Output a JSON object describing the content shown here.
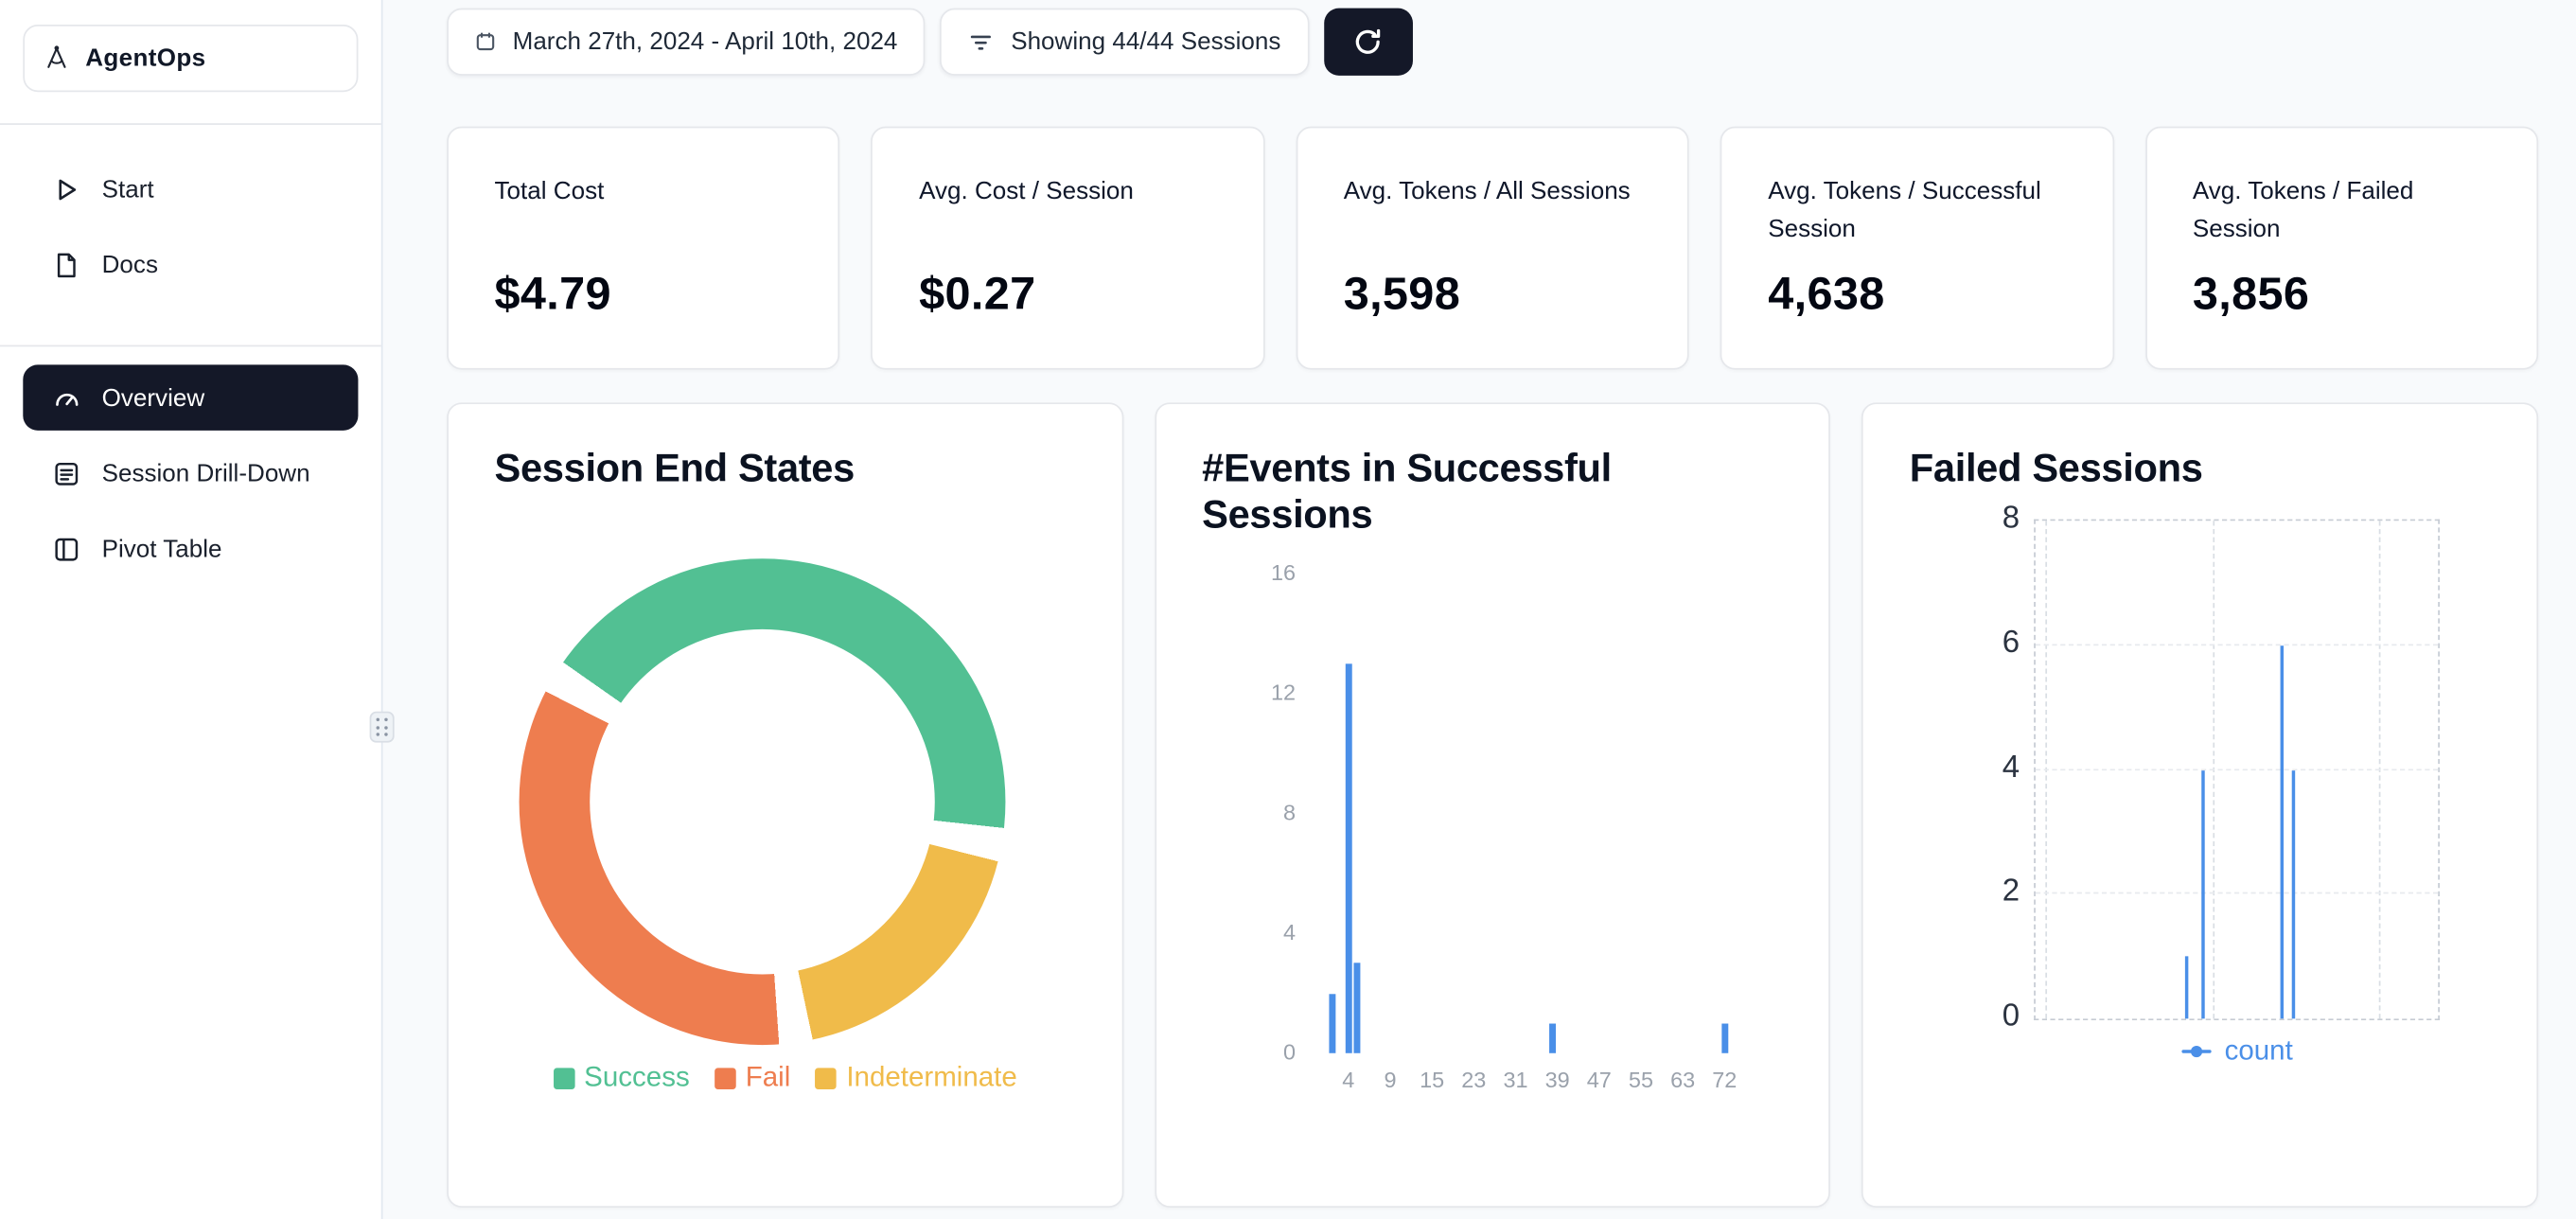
{
  "brand": {
    "name": "AgentOps"
  },
  "sidebar": {
    "items": [
      {
        "label": "Start"
      },
      {
        "label": "Docs"
      },
      {
        "label": "Overview",
        "active": true
      },
      {
        "label": "Session Drill-Down"
      },
      {
        "label": "Pivot Table"
      }
    ]
  },
  "topbar": {
    "date_range": "March 27th, 2024 - April 10th, 2024",
    "sessions_filter": "Showing 44/44 Sessions"
  },
  "stats": [
    {
      "label": "Total Cost",
      "value": "$4.79"
    },
    {
      "label": "Avg. Cost / Session",
      "value": "$0.27"
    },
    {
      "label": "Avg. Tokens / All Sessions",
      "value": "3,598"
    },
    {
      "label": "Avg. Tokens / Successful Session",
      "value": "4,638"
    },
    {
      "label": "Avg. Tokens / Failed Session",
      "value": "3,856"
    }
  ],
  "chart_data": [
    {
      "id": "session-end-states",
      "type": "pie",
      "donut": true,
      "title": "Session End States",
      "labels": [
        "Success",
        "Fail",
        "Indeterminate"
      ],
      "values_pct": [
        45,
        36,
        19
      ],
      "colors": [
        "#52c093",
        "#ee7d4f",
        "#f0bb4a"
      ],
      "draw_order": [
        0,
        2,
        1
      ],
      "start_angle_deg": 305,
      "gap_deg": 8,
      "legend_position": "bottom"
    },
    {
      "id": "events-in-successful-sessions",
      "type": "bar",
      "title": "#Events in Successful Sessions",
      "xticks": [
        4,
        9,
        15,
        23,
        31,
        39,
        47,
        55,
        63,
        72
      ],
      "yticks": [
        0,
        4,
        8,
        12,
        16
      ],
      "ylim": [
        0,
        16
      ],
      "bars": [
        {
          "x": 2,
          "count": 2
        },
        {
          "x": 4,
          "count": 13
        },
        {
          "x": 5,
          "count": 3
        },
        {
          "x": 38,
          "count": 1
        },
        {
          "x": 72,
          "count": 1
        }
      ],
      "bar_color": "#4a8fe8"
    },
    {
      "id": "failed-sessions",
      "type": "line",
      "title": "Failed Sessions",
      "yticks": [
        0,
        2,
        4,
        6,
        8
      ],
      "ylim": [
        0,
        8
      ],
      "series": [
        {
          "name": "count",
          "color": "#4a8fe8",
          "points": [
            {
              "xfrac": 0.376,
              "y": 1
            },
            {
              "xfrac": 0.417,
              "y": 4
            },
            {
              "xfrac": 0.611,
              "y": 6
            },
            {
              "xfrac": 0.64,
              "y": 4
            }
          ]
        }
      ],
      "grid": "dashed",
      "legend_position": "bottom"
    }
  ],
  "colors": {
    "accent_dark": "#141828",
    "success": "#52c093",
    "fail": "#ee7d4f",
    "indeterminate": "#f0bb4a",
    "chart_blue": "#4a8fe8",
    "page_bg": "#f8fafc"
  }
}
